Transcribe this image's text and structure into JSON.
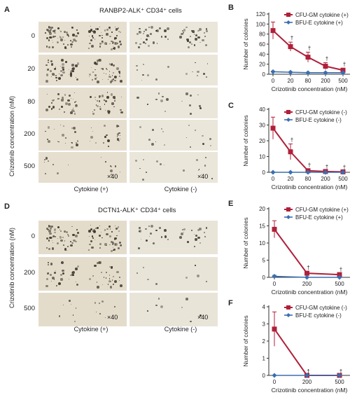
{
  "panelA": {
    "label": "A",
    "title": "RANBP2-ALK⁺ CD34⁺ cells",
    "ylabel": "Crizotinib concentration (nM)",
    "rows": [
      "0",
      "20",
      "80",
      "200",
      "500"
    ],
    "col_plus": "Cytokine (+)",
    "col_minus": "Cytokine (-)",
    "mag1": "×40",
    "mag2": "×40"
  },
  "panelD": {
    "label": "D",
    "title": "DCTN1-ALK⁺ CD34⁺ cells",
    "ylabel": "Crizotinib concentration (nM)",
    "rows": [
      "0",
      "200",
      "500"
    ],
    "col_plus": "Cytokine (+)",
    "col_minus": "Cytokine (-)",
    "mag1": "×40",
    "mag2": "×40"
  },
  "colors": {
    "cfu": "#b0203a",
    "bfu": "#3a6fb0",
    "axis": "#333333"
  },
  "chart_data": [
    {
      "panel": "B",
      "type": "line",
      "categories": [
        "0",
        "20",
        "80",
        "200",
        "500"
      ],
      "xlabel": "Crizotinib concentration (nM)",
      "ylabel": "Number of colonies",
      "ylim": [
        0,
        120
      ],
      "yticks": [
        0,
        20,
        40,
        60,
        80,
        100,
        120
      ],
      "series": [
        {
          "name": "CFU-GM cytokine (+)",
          "values": [
            87,
            55,
            34,
            16,
            8
          ],
          "errors": [
            17,
            9,
            10,
            7,
            4
          ]
        },
        {
          "name": "BFU-E cytokine (+)",
          "values": [
            5,
            4,
            3,
            3,
            3
          ],
          "errors": [
            1,
            1,
            1,
            1,
            1
          ]
        }
      ],
      "annotations": [
        "",
        "†",
        "†",
        "†",
        "†"
      ]
    },
    {
      "panel": "C",
      "type": "line",
      "categories": [
        "0",
        "20",
        "80",
        "200",
        "500"
      ],
      "xlabel": "Crizotinib concentration (nM)",
      "ylabel": "Number of colonies",
      "ylim": [
        0,
        40
      ],
      "yticks": [
        0,
        10,
        20,
        30,
        40
      ],
      "series": [
        {
          "name": "CFU-GM cytokine (-)",
          "values": [
            28,
            13,
            1,
            0.5,
            0.3
          ],
          "errors": [
            7,
            5,
            1,
            0.5,
            0.3
          ]
        },
        {
          "name": "BFU-E cytokine (-)",
          "values": [
            0,
            0,
            0,
            0,
            0
          ],
          "errors": [
            0,
            0,
            0,
            0,
            0
          ]
        }
      ],
      "annotations": [
        "",
        "†",
        "†",
        "†",
        "†"
      ]
    },
    {
      "panel": "E",
      "type": "line",
      "categories": [
        "0",
        "200",
        "500"
      ],
      "xlabel": "Crizotinib concentration (nM)",
      "ylabel": "Number of colonies",
      "ylim": [
        0,
        20
      ],
      "yticks": [
        0,
        5,
        10,
        15,
        20
      ],
      "series": [
        {
          "name": "CFU-GM cytokine (+)",
          "values": [
            14,
            1.2,
            0.8
          ],
          "errors": [
            2.5,
            0.4,
            0.3
          ]
        },
        {
          "name": "BFU-E cytokine (+)",
          "values": [
            0.3,
            0,
            0
          ],
          "errors": [
            0.3,
            0,
            0
          ]
        }
      ],
      "annotations": [
        "",
        "†",
        "†"
      ]
    },
    {
      "panel": "F",
      "type": "line",
      "categories": [
        "0",
        "200",
        "500"
      ],
      "xlabel": "Crizotinib concentration (nM)",
      "ylabel": "Number of colonies",
      "ylim": [
        0,
        4
      ],
      "yticks": [
        0,
        1,
        2,
        3,
        4
      ],
      "series": [
        {
          "name": "CFU-GM cytokine (-)",
          "values": [
            2.7,
            0,
            0
          ],
          "errors": [
            1,
            0,
            0
          ]
        },
        {
          "name": "BFU-E cytokine (-)",
          "values": [
            0,
            0,
            0
          ],
          "errors": [
            0,
            0,
            0
          ]
        }
      ],
      "annotations": [
        "",
        "†",
        "†"
      ]
    }
  ]
}
